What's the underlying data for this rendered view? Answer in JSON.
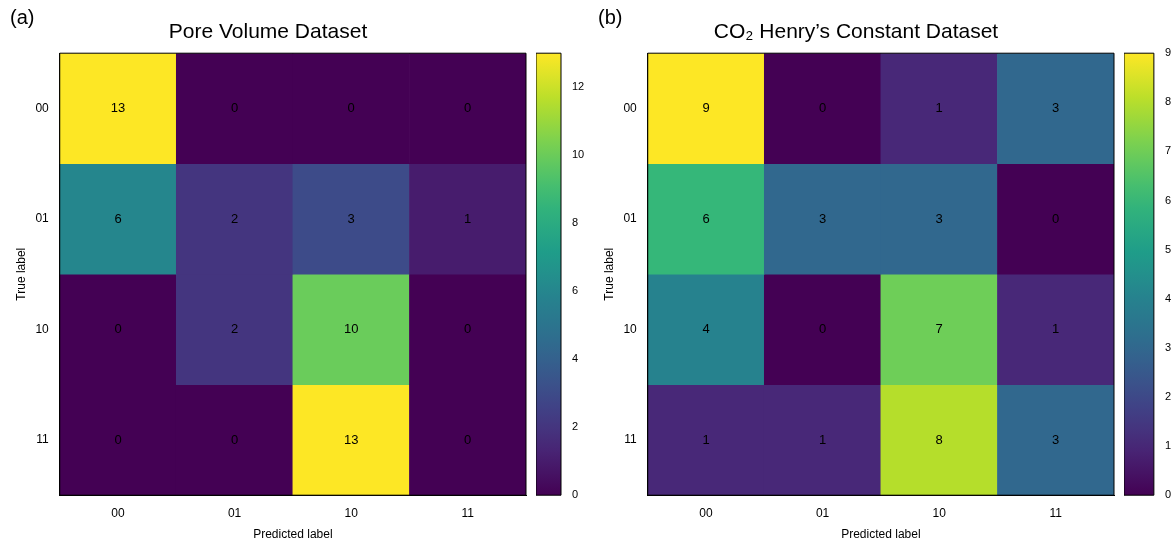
{
  "chart_data": [
    {
      "type": "heatmap",
      "title": "Pore Volume Dataset",
      "xlabel": "Predicted label",
      "ylabel": "True label",
      "annotations": [
        "(a)"
      ],
      "categories": [
        "00",
        "01",
        "10",
        "11"
      ],
      "y_categories": [
        "00",
        "01",
        "10",
        "11"
      ],
      "cells": [
        [
          13,
          0,
          0,
          0
        ],
        [
          6,
          2,
          3,
          1
        ],
        [
          0,
          2,
          10,
          0
        ],
        [
          0,
          0,
          13,
          0
        ]
      ],
      "clim": [
        0,
        13
      ],
      "cticks": [
        0,
        2,
        4,
        6,
        8,
        10,
        12
      ],
      "data_labels": true
    },
    {
      "type": "heatmap",
      "title": "CO₂ Henry’s Constant Dataset",
      "xlabel": "Predicted label",
      "ylabel": "True label",
      "annotations": [
        "(b)"
      ],
      "categories": [
        "00",
        "01",
        "10",
        "11"
      ],
      "y_categories": [
        "00",
        "01",
        "10",
        "11"
      ],
      "cells": [
        [
          9,
          0,
          1,
          3
        ],
        [
          6,
          3,
          3,
          0
        ],
        [
          4,
          0,
          7,
          1
        ],
        [
          1,
          1,
          8,
          3
        ]
      ],
      "clim": [
        0,
        9
      ],
      "cticks": [
        0,
        1,
        2,
        3,
        4,
        5,
        6,
        7,
        8,
        9
      ],
      "data_labels": true
    }
  ]
}
